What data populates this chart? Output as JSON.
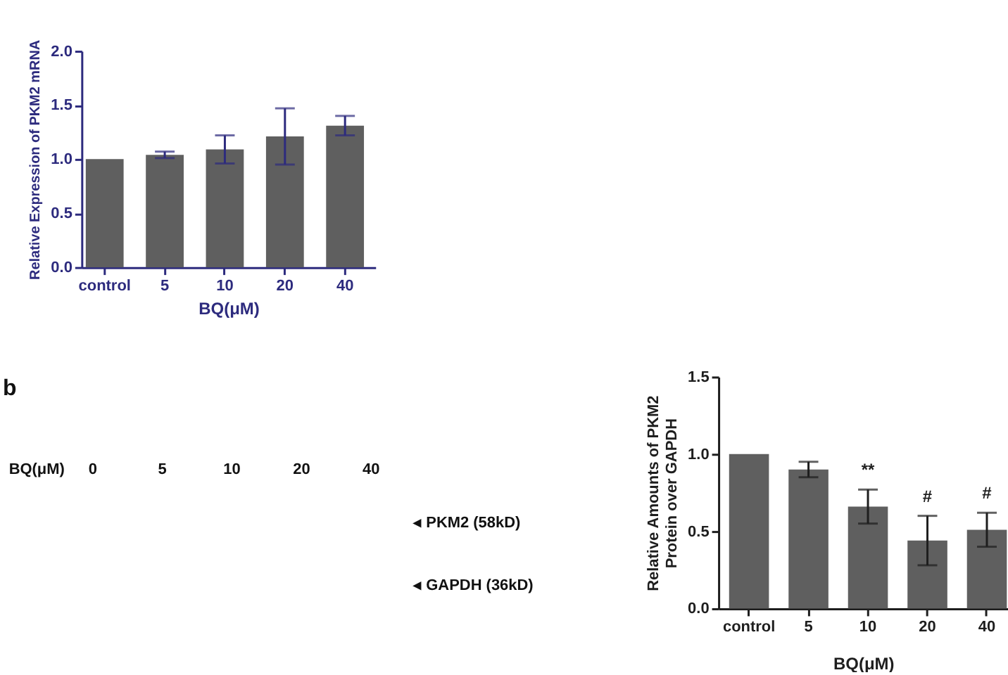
{
  "chart_data": [
    {
      "type": "bar",
      "categories": [
        "control",
        "5",
        "10",
        "20",
        "40"
      ],
      "values": [
        1.0,
        1.04,
        1.09,
        1.21,
        1.31
      ],
      "errors": [
        null,
        0.03,
        0.13,
        0.26,
        0.09
      ],
      "color": "#5f5f5f",
      "ylim": [
        0,
        2
      ],
      "yticks": [
        {
          "value": 0,
          "label": "0.0"
        },
        {
          "value": 0.5,
          "label": "0.5"
        },
        {
          "value": 1,
          "label": "1.0"
        },
        {
          "value": 1.5,
          "label": "1.5"
        },
        {
          "value": 2,
          "label": "2.0"
        }
      ],
      "xlabel": "BQ(μM)",
      "ylabel": "Relative Expression of PKM2 mRNA"
    },
    {
      "type": "other",
      "annotations": [
        "b",
        "BQ(μM)",
        "0",
        "5",
        "10",
        "20",
        "40",
        "◂ PKM2 (58kD)",
        "◂ GAPDH (36kD)"
      ]
    },
    {
      "type": "bar",
      "categories": [
        "control",
        "5",
        "10",
        "20",
        "40"
      ],
      "values": [
        1.0,
        0.9,
        0.66,
        0.44,
        0.51
      ],
      "errors": [
        null,
        0.05,
        0.11,
        0.16,
        0.11
      ],
      "value_labels": [
        null,
        null,
        "**",
        "#",
        "#"
      ],
      "color": "#5f5f5f",
      "ylim": [
        0,
        1.5
      ],
      "yticks": [
        {
          "value": 0,
          "label": "0.0"
        },
        {
          "value": 0.5,
          "label": "0.5"
        },
        {
          "value": 1,
          "label": "1.0"
        },
        {
          "value": 1.5,
          "label": "1.5"
        }
      ],
      "xlabel": "BQ(μM)",
      "ylabel": "Relative Amounts of PKM2\nProtein over GAPDH"
    }
  ]
}
